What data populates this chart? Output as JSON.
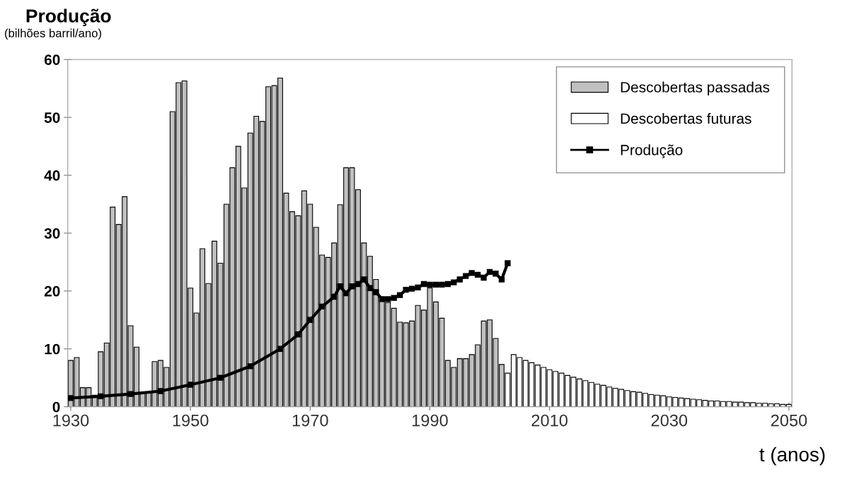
{
  "chart_data": {
    "type": "bar",
    "title": "Produção",
    "subtitle": "(bilhões barril/ano)",
    "xlabel": "t (anos)",
    "series": [
      {
        "name": "Descobertas passadas",
        "color": "#c0c0c0",
        "x": [
          1930,
          1931,
          1932,
          1933,
          1934,
          1935,
          1936,
          1937,
          1938,
          1939,
          1940,
          1941,
          1942,
          1943,
          1944,
          1945,
          1946,
          1947,
          1948,
          1949,
          1950,
          1951,
          1952,
          1953,
          1954,
          1955,
          1956,
          1957,
          1958,
          1959,
          1960,
          1961,
          1962,
          1963,
          1964,
          1965,
          1966,
          1967,
          1968,
          1969,
          1970,
          1971,
          1972,
          1973,
          1974,
          1975,
          1976,
          1977,
          1978,
          1979,
          1980,
          1981,
          1982,
          1983,
          1984,
          1985,
          1986,
          1987,
          1988,
          1989,
          1990,
          1991,
          1992,
          1993,
          1994,
          1995,
          1996,
          1997,
          1998,
          1999,
          2000,
          2001,
          2002
        ],
        "values": [
          8,
          8.5,
          3.3,
          3.3,
          2,
          9.5,
          11,
          34.5,
          31.5,
          36.3,
          14,
          10.3,
          2.5,
          2.5,
          7.8,
          8,
          6.8,
          51,
          56,
          56.3,
          20.5,
          16.2,
          27.3,
          21.3,
          28.6,
          24.8,
          35,
          41.3,
          45,
          37.8,
          47.3,
          50.2,
          49.3,
          55.3,
          55.5,
          56.8,
          36.9,
          33.7,
          33,
          37.3,
          35,
          31,
          26.2,
          25.8,
          28.3,
          34.9,
          41.3,
          41.3,
          37.5,
          28.3,
          26,
          22,
          18.5,
          18,
          17,
          14.6,
          14.5,
          14.8,
          17.5,
          16.7,
          20.5,
          18.1,
          15.3,
          8,
          6.8,
          8.3,
          8.3,
          9,
          10.7,
          14.8,
          15,
          11.8,
          7.3
        ]
      },
      {
        "name": "Descobertas futuras",
        "color": "#ffffff",
        "x": [
          2003,
          2004,
          2005,
          2006,
          2007,
          2008,
          2009,
          2010,
          2011,
          2012,
          2013,
          2014,
          2015,
          2016,
          2017,
          2018,
          2019,
          2020,
          2021,
          2022,
          2023,
          2024,
          2025,
          2026,
          2027,
          2028,
          2029,
          2030,
          2031,
          2032,
          2033,
          2034,
          2035,
          2036,
          2037,
          2038,
          2039,
          2040,
          2041,
          2042,
          2043,
          2044,
          2045,
          2046,
          2047,
          2048,
          2049,
          2050
        ],
        "values": [
          5.8,
          9,
          8.5,
          8,
          7.6,
          7.2,
          6.8,
          6.4,
          6.1,
          5.8,
          5.4,
          5.1,
          4.8,
          4.5,
          4.2,
          3.9,
          3.7,
          3.4,
          3.2,
          3,
          2.8,
          2.6,
          2.5,
          2.3,
          2.1,
          2,
          1.9,
          1.7,
          1.6,
          1.5,
          1.4,
          1.3,
          1.2,
          1.1,
          1,
          1,
          0.9,
          0.9,
          0.8,
          0.8,
          0.7,
          0.7,
          0.6,
          0.6,
          0.5,
          0.5,
          0.4,
          0.4
        ]
      },
      {
        "name": "Produção",
        "type": "line",
        "color": "#000000",
        "marker": "square",
        "x": [
          1930,
          1935,
          1940,
          1945,
          1950,
          1955,
          1960,
          1965,
          1968,
          1970,
          1972,
          1974,
          1975,
          1976,
          1977,
          1978,
          1979,
          1980,
          1981,
          1982,
          1983,
          1984,
          1985,
          1986,
          1987,
          1988,
          1989,
          1990,
          1991,
          1992,
          1993,
          1994,
          1995,
          1996,
          1997,
          1998,
          1999,
          2000,
          2001,
          2002,
          2003
        ],
        "values": [
          1.5,
          1.8,
          2.2,
          2.7,
          3.8,
          5,
          7,
          10,
          12.5,
          15,
          17.3,
          19,
          20.8,
          19.6,
          20.8,
          21.2,
          22,
          20.5,
          19.8,
          18.6,
          18.6,
          18.8,
          19.3,
          20.2,
          20.4,
          20.6,
          21.2,
          21.1,
          21.1,
          21.1,
          21.2,
          21.5,
          22,
          22.6,
          23.1,
          22.8,
          22.3,
          23.3,
          23,
          22,
          24.8
        ]
      }
    ],
    "xlim": [
      1929.5,
      2050.5
    ],
    "xticks": [
      1930,
      1950,
      1970,
      1990,
      2010,
      2030,
      2050
    ],
    "ylim": [
      0,
      60
    ],
    "yticks": [
      0,
      10,
      20,
      30,
      40,
      50,
      60
    ],
    "grid": false,
    "legend": "top right",
    "line_style": "solid"
  }
}
